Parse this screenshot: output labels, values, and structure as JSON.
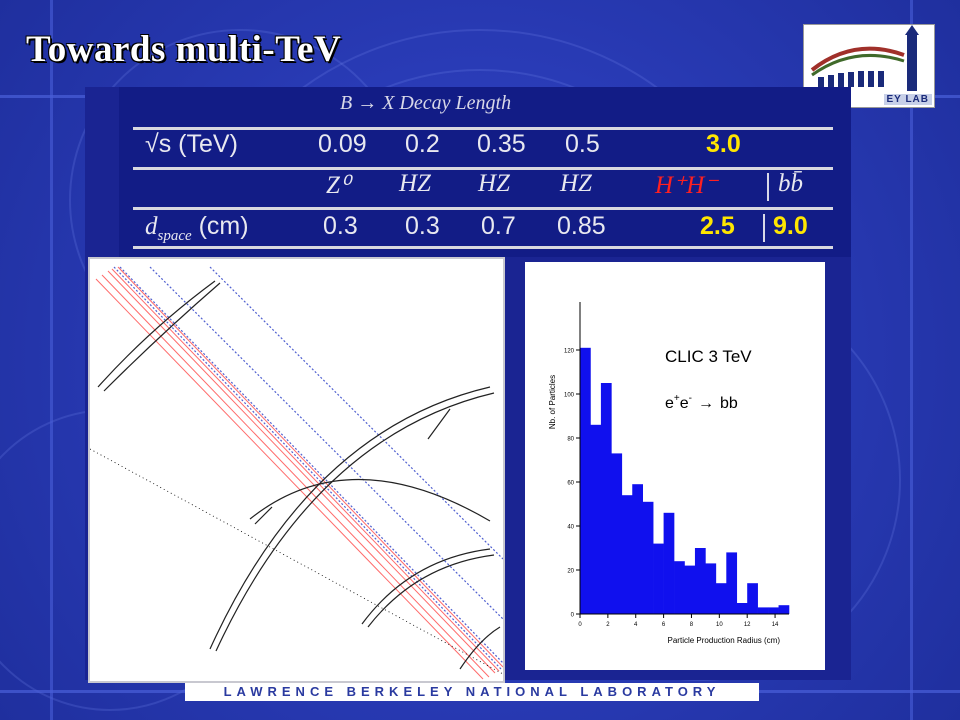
{
  "title": "Towards multi-TeV",
  "logo_text": "EY LAB",
  "footer": "LAWRENCE BERKELEY NATIONAL LABORATORY",
  "table": {
    "title": "B → X Decay Length",
    "rows": [
      {
        "label": "√s (TeV)",
        "cells": [
          "0.09",
          "0.2",
          "0.35",
          "0.5",
          "3.0"
        ]
      },
      {
        "label": "",
        "cells": [
          "Z⁰",
          "HZ",
          "HZ",
          "HZ",
          "H⁺H⁻",
          "bb̄"
        ]
      },
      {
        "label_symbol": "d",
        "label_sub": "space",
        "label_unit": "(cm)",
        "cells": [
          "0.3",
          "0.3",
          "0.7",
          "0.85",
          "2.5",
          "9.0"
        ]
      }
    ]
  },
  "colors": {
    "highlight": "#ffe600",
    "red": "#ff2020",
    "bar": "#1010ee",
    "slide_bg": "#2a3cb8"
  },
  "chart_data": {
    "type": "bar",
    "title": "",
    "xlabel": "Particle Production Radius (cm)",
    "ylabel": "Nb. of Particles",
    "annotations": [
      "CLIC 3 TeV"
    ],
    "process": {
      "e": "e",
      "plus": "+",
      "minus": "-",
      "arrow": "→",
      "final": "bb"
    },
    "xlim": [
      0,
      15
    ],
    "ylim": [
      0,
      130
    ],
    "bin_width": 0.75,
    "x": [
      0,
      0.75,
      1.5,
      2.25,
      3.0,
      3.75,
      4.5,
      5.25,
      6.0,
      6.75,
      7.5,
      8.25,
      9.0,
      9.75,
      10.5,
      11.25,
      12.0,
      12.75,
      13.5,
      14.25
    ],
    "values": [
      121,
      86,
      105,
      73,
      54,
      59,
      51,
      32,
      46,
      24,
      22,
      30,
      23,
      14,
      28,
      5,
      14,
      3,
      3,
      4
    ],
    "x_ticks": [
      0,
      2,
      4,
      6,
      8,
      10,
      12,
      14
    ],
    "y_ticks": [
      0,
      20,
      40,
      60,
      80,
      100,
      120
    ],
    "grid": false,
    "legend": false
  }
}
